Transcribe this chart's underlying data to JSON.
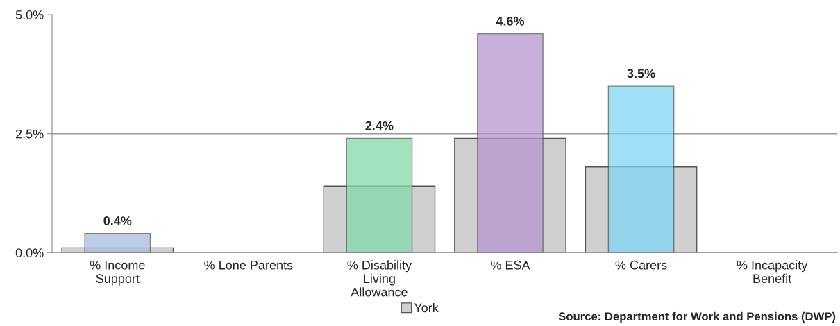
{
  "chart_data": {
    "type": "bar",
    "categories": [
      "% Income\nSupport",
      "% Lone Parents",
      "% Disability\nLiving\nAllowance",
      "% ESA",
      "% Carers",
      "% Incapacity\nBenefit"
    ],
    "series": [
      {
        "name": "York",
        "color": "#d0d0d0",
        "values": [
          0.1,
          null,
          1.4,
          2.4,
          1.8,
          null
        ]
      },
      {
        "colors": [
          "#a6bddc",
          null,
          "#80daa8",
          "#b596d0",
          "#80d6f4",
          null
        ],
        "values": [
          0.4,
          null,
          2.4,
          4.6,
          3.5,
          null
        ],
        "value_labels": [
          "0.4%",
          null,
          "2.4%",
          "4.6%",
          "3.5%",
          null
        ]
      }
    ],
    "ylim": [
      0,
      5
    ],
    "yticks": [
      {
        "value": 0,
        "label": "0.0%"
      },
      {
        "value": 2.5,
        "label": "2.5%"
      },
      {
        "value": 5,
        "label": "5.0%"
      }
    ],
    "grid": "y",
    "legend": "bottom",
    "annotations": [
      "Source: Department for Work and Pensions (DWP)"
    ]
  }
}
